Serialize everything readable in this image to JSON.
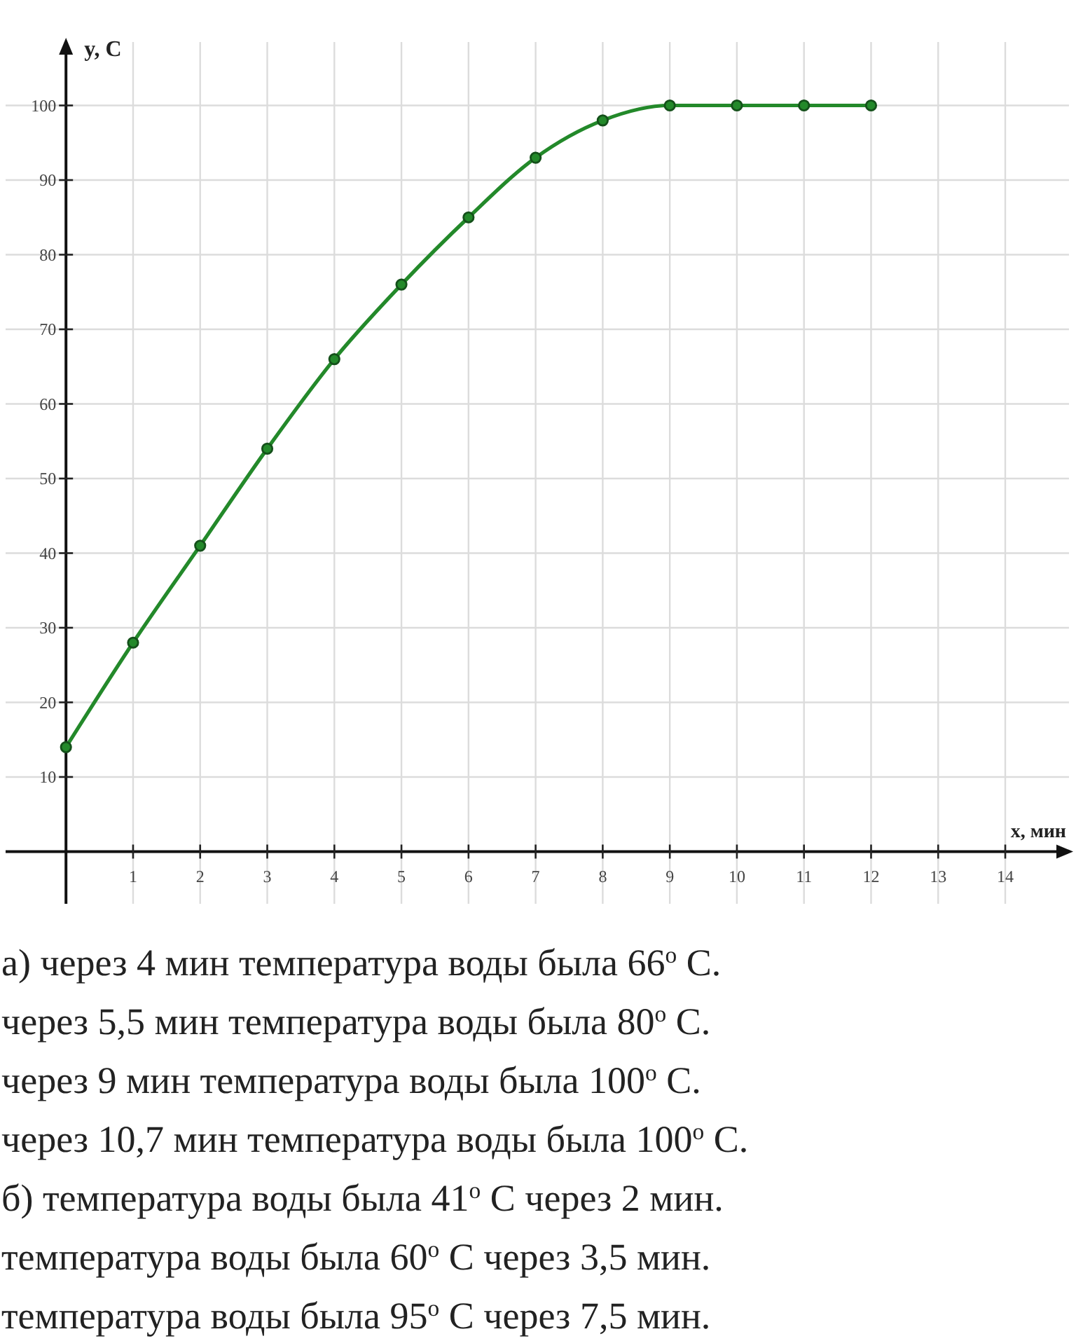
{
  "chart_data": {
    "type": "line",
    "xlabel": "x, мин",
    "ylabel": "y, C",
    "x": [
      0,
      1,
      2,
      3,
      4,
      5,
      6,
      7,
      8,
      9,
      10,
      11,
      12
    ],
    "series": [
      {
        "color": "#23892a",
        "values": [
          14,
          28,
          41,
          54,
          66,
          76,
          85,
          93,
          98,
          100,
          100,
          100,
          100
        ]
      }
    ],
    "xlim": [
      -0.9,
      14.95
    ],
    "ylim": [
      -7,
      108.5
    ],
    "xticks": [
      1,
      2,
      3,
      4,
      5,
      6,
      7,
      8,
      9,
      10,
      11,
      12,
      13,
      14
    ],
    "yticks": [
      10,
      20,
      30,
      40,
      50,
      60,
      70,
      80,
      90,
      100
    ],
    "grid": true,
    "marker": "circle",
    "line_style": "solid",
    "annotations": [
      "а) через 4 мин температура воды была 66$^{о}$ С.",
      "через 5,5 мин температура воды была 80$^{о}$ С.",
      "через 9 мин температура воды была 100$^{о}$ С.",
      "через 10,7 мин температура воды была 100$^{о}$ С.",
      "б) температура воды была 41$^{о}$ С через 2 мин.",
      "температура воды была 60$^{о}$ С через 3,5 мин.",
      "температура воды была 95$^{о}$ С через 7,5 мин."
    ]
  }
}
